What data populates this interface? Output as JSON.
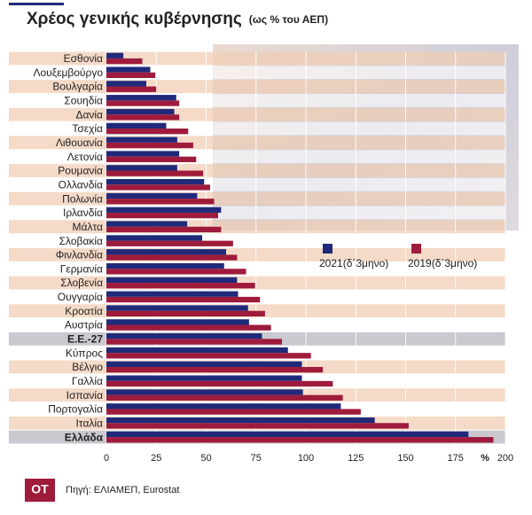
{
  "chart_data": {
    "type": "barh",
    "title": "Χρέος γενικής κυβέρνησης",
    "subtitle": "(ως % του ΑΕΠ)",
    "unit_label": "%",
    "source": "Πηγή: ΕΛΙΑΜΕΠ, Eurostat",
    "logo": "OT",
    "categories": [
      "Εσθονία",
      "Λουξεμβούργο",
      "Βουλγαρία",
      "Σουηδία",
      "Δανία",
      "Τσεχία",
      "Λιθουανία",
      "Λετονία",
      "Ρουμανία",
      "Ολλανδία",
      "Πολωνία",
      "Ιρλανδία",
      "Μάλτα",
      "Σλοβακία",
      "Φινλανδία",
      "Γερμανία",
      "Σλοβενία",
      "Ουγγαρία",
      "Κροατία",
      "Αυστρία",
      "Ε.Ε.-27",
      "Κύπρος",
      "Βέλγιο",
      "Γαλλία",
      "Ισπανία",
      "Πορτογαλία",
      "Ιταλία",
      "Ελλάδα"
    ],
    "highlight": [
      20,
      27
    ],
    "series": [
      {
        "name": "2021(δ΄3μηνο)",
        "color": "#1f2a7a",
        "values": [
          8.5,
          22,
          20,
          35,
          34,
          30,
          35.5,
          36.5,
          35.5,
          49,
          45.5,
          57.5,
          40.5,
          48,
          60,
          59,
          65.5,
          66,
          71,
          71.5,
          78,
          91,
          98,
          98,
          98.5,
          117.5,
          134.5,
          181.5
        ]
      },
      {
        "name": "2019(δ΄3μηνο)",
        "color": "#9e1b3c",
        "values": [
          18,
          24.5,
          25,
          36.5,
          36.5,
          41,
          43.5,
          45,
          48.5,
          52,
          54,
          56,
          57.5,
          63.5,
          65.5,
          70,
          74.5,
          77,
          79.5,
          82.5,
          88,
          102.5,
          108.5,
          113.5,
          118.5,
          127.5,
          151.5,
          194
        ]
      }
    ],
    "xlim": [
      0,
      200
    ],
    "xticks": [
      0,
      25,
      50,
      75,
      100,
      125,
      150,
      175,
      200
    ],
    "grid": true
  }
}
